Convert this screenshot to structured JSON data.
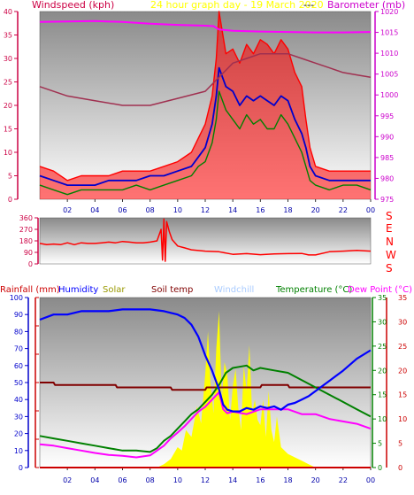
{
  "header": {
    "title": "24 hour graph day - 19 March 2020",
    "dashes": "---",
    "left_label": "Windspeed (kph)",
    "right_label": "Barometer (mb)"
  },
  "direction_letters": [
    "S",
    "E",
    "N",
    "W",
    "S"
  ],
  "colors": {
    "gust": "#ff0000",
    "wind": "#0000cc",
    "wind_alt": "#008000",
    "barometer": "#ff00ff",
    "trend": "#a03050",
    "direction": "#ff0000",
    "axis_left": "#cc0044",
    "axis_right": "#cc00cc",
    "axis_blue": "#0000cc",
    "axis_green": "#008000",
    "rain": "#cc0000",
    "humidity": "#0000ff",
    "solar": "#ffff00",
    "solar_label": "#999900",
    "soil": "#800000",
    "windchill": "#aaccff",
    "temperature": "#008000",
    "dewpoint": "#ff00ff",
    "hour_label": "#0000aa"
  },
  "legend": [
    {
      "key": "rain",
      "text": "Rainfall (mm)"
    },
    {
      "key": "humidity",
      "text": "Humidity"
    },
    {
      "key": "solar",
      "text": "Solar"
    },
    {
      "key": "soil",
      "text": "Soil temp"
    },
    {
      "key": "windchill",
      "text": "Windchill"
    },
    {
      "key": "temperature",
      "text": "Temperature (°C)"
    },
    {
      "key": "dewpoint",
      "text": "Dew Point (°C)"
    }
  ],
  "chart_data": [
    {
      "type": "line",
      "title": "24 hour graph day - 19 March 2020",
      "ylabel": "Windspeed (kph)",
      "y2label": "Barometer (mb)",
      "xlim": [
        0,
        24
      ],
      "ylim": [
        0,
        40
      ],
      "y2lim": [
        975,
        1020
      ],
      "xticks": [
        "02",
        "04",
        "06",
        "08",
        "10",
        "12",
        "14",
        "16",
        "18",
        "20",
        "22",
        "00"
      ],
      "yticks": [
        0,
        5,
        10,
        15,
        20,
        25,
        30,
        35,
        40
      ],
      "y2ticks": [
        975,
        980,
        985,
        990,
        995,
        1000,
        1005,
        1010,
        1015,
        1020
      ],
      "grid": false,
      "series": [
        {
          "key": "gust",
          "x": [
            0,
            1,
            2,
            3,
            4,
            5,
            6,
            7,
            8,
            9,
            10,
            11,
            11.5,
            12,
            12.5,
            12.8,
            13,
            13.5,
            14,
            14.5,
            15,
            15.5,
            16,
            16.5,
            17,
            17.5,
            18,
            18.5,
            19,
            19.3,
            19.6,
            20,
            21,
            22,
            23,
            24
          ],
          "values": [
            7,
            6,
            4,
            5,
            5,
            5,
            6,
            6,
            6,
            7,
            8,
            10,
            13,
            16,
            22,
            30,
            40,
            31,
            32,
            29,
            33,
            31,
            34,
            33,
            31,
            34,
            32,
            27,
            24,
            17,
            11,
            7,
            6,
            6,
            6,
            6
          ]
        },
        {
          "key": "wind",
          "x": [
            0,
            1,
            2,
            3,
            4,
            5,
            6,
            7,
            8,
            9,
            10,
            11,
            11.5,
            12,
            12.5,
            12.8,
            13,
            13.5,
            14,
            14.5,
            15,
            15.5,
            16,
            16.5,
            17,
            17.5,
            18,
            18.5,
            19,
            19.3,
            19.6,
            20,
            21,
            22,
            23,
            24
          ],
          "values": [
            5,
            4,
            3,
            3,
            3,
            4,
            4,
            4,
            5,
            5,
            6,
            7,
            9,
            11,
            16,
            22,
            28,
            24,
            23,
            20,
            22,
            21,
            22,
            21,
            20,
            22,
            21,
            17,
            14,
            11,
            7,
            5,
            4,
            4,
            4,
            4
          ]
        },
        {
          "key": "wind_alt",
          "x": [
            0,
            1,
            2,
            3,
            4,
            5,
            6,
            7,
            8,
            9,
            10,
            11,
            11.5,
            12,
            12.5,
            12.8,
            13,
            13.5,
            14,
            14.5,
            15,
            15.5,
            16,
            16.5,
            17,
            17.5,
            18,
            18.5,
            19,
            19.3,
            19.6,
            20,
            21,
            22,
            23,
            24
          ],
          "values": [
            3,
            2,
            1,
            2,
            2,
            2,
            2,
            3,
            2,
            3,
            4,
            5,
            7,
            8,
            12,
            17,
            23,
            19,
            17,
            15,
            18,
            16,
            17,
            15,
            15,
            18,
            16,
            13,
            10,
            7,
            4,
            3,
            2,
            3,
            3,
            2
          ]
        },
        {
          "key": "barometer",
          "axis": "right",
          "x": [
            0,
            2,
            4,
            6,
            8,
            10,
            12,
            12.6,
            13,
            14,
            16,
            18,
            20,
            22,
            24
          ],
          "values": [
            1017.5,
            1017.6,
            1017.7,
            1017.5,
            1017.1,
            1016.8,
            1016.6,
            1016.5,
            1015.7,
            1015.4,
            1015.2,
            1015.1,
            1015.0,
            1015.0,
            1015.1
          ]
        },
        {
          "key": "trend",
          "x": [
            0,
            2,
            4,
            6,
            8,
            10,
            12,
            13,
            14,
            15,
            16,
            17,
            18,
            19,
            20,
            21,
            22,
            23,
            24
          ],
          "values": [
            24,
            22,
            21,
            20,
            20,
            21.5,
            23,
            26,
            29,
            30,
            31,
            31,
            31,
            30,
            29,
            28,
            27,
            26.5,
            26
          ]
        }
      ]
    },
    {
      "type": "line",
      "ylim": [
        0,
        360
      ],
      "yticks": [
        0,
        90,
        180,
        270,
        360
      ],
      "grid": false,
      "series": [
        {
          "key": "direction",
          "x": [
            0,
            0.5,
            1,
            1.5,
            2,
            2.5,
            3,
            3.5,
            4,
            4.5,
            5,
            5.5,
            6,
            6.5,
            7,
            7.5,
            8,
            8.5,
            8.8,
            8.9,
            9.0,
            9.1,
            9.2,
            9.4,
            9.6,
            10,
            10.5,
            11,
            12,
            13,
            14,
            15,
            16,
            17,
            18,
            19,
            19.5,
            20,
            21,
            22,
            23,
            24
          ],
          "values": [
            160,
            150,
            155,
            150,
            165,
            150,
            165,
            160,
            160,
            165,
            170,
            165,
            175,
            170,
            165,
            165,
            170,
            180,
            270,
            30,
            350,
            20,
            330,
            250,
            190,
            140,
            125,
            110,
            100,
            95,
            75,
            80,
            72,
            78,
            80,
            82,
            70,
            70,
            95,
            100,
            105,
            100
          ]
        }
      ]
    },
    {
      "type": "line",
      "ylabel": "Rainfall (mm) / Humidity",
      "y2label": "Temperature (°C) / Dew Point (°C)",
      "xlim": [
        0,
        24
      ],
      "ylim": [
        0,
        100
      ],
      "y2lim": [
        0,
        35
      ],
      "yticks": [
        0,
        10,
        20,
        30,
        40,
        50,
        60,
        70,
        80,
        90,
        100
      ],
      "rain_ticks": [
        0,
        5,
        10,
        15,
        20,
        25,
        30
      ],
      "y2ticks": [
        0,
        5,
        10,
        15,
        20,
        25,
        30,
        35
      ],
      "grid": false,
      "series": [
        {
          "key": "humidity",
          "axis": "left",
          "x": [
            0,
            1,
            2,
            3,
            4,
            5,
            6,
            7,
            8,
            9,
            9.5,
            10,
            10.5,
            11,
            11.5,
            12,
            12.5,
            13,
            13.3,
            13.6,
            14,
            14.5,
            15,
            15.5,
            16,
            16.5,
            17,
            17.5,
            18,
            18.5,
            19,
            19.5,
            20,
            21,
            22,
            23,
            24
          ],
          "values": [
            87,
            90,
            90,
            92,
            92,
            92,
            93,
            93,
            93,
            92,
            91,
            90,
            88,
            84,
            77,
            66,
            57,
            46,
            37,
            34,
            33,
            33,
            35,
            34,
            36,
            35,
            36,
            34,
            37,
            38,
            40,
            42,
            45,
            51,
            57,
            64,
            69
          ]
        },
        {
          "key": "temperature",
          "axis": "right",
          "x": [
            0,
            1,
            2,
            3,
            4,
            5,
            6,
            7,
            8,
            8.5,
            9,
            9.5,
            10,
            10.5,
            11,
            11.5,
            12,
            12.5,
            13,
            13.5,
            14,
            15,
            15.5,
            16,
            17,
            18,
            19,
            20,
            21,
            22,
            23,
            24
          ],
          "values": [
            6.5,
            6,
            5.5,
            5,
            4.5,
            4,
            3.5,
            3.5,
            3.2,
            4,
            5.5,
            6.5,
            8,
            9.5,
            11,
            12,
            13.5,
            15,
            17,
            19.5,
            20.5,
            21,
            20,
            20.5,
            20,
            19.5,
            18,
            16.5,
            15,
            13.5,
            12,
            10.5
          ]
        },
        {
          "key": "dewpoint",
          "axis": "right",
          "x": [
            0,
            1,
            2,
            3,
            4,
            5,
            6,
            7,
            8,
            8.5,
            9,
            9.5,
            10,
            10.5,
            11,
            11.5,
            12,
            12.5,
            13,
            13.3,
            13.6,
            14,
            15,
            16,
            17,
            18,
            19,
            20,
            21,
            22,
            23,
            24
          ],
          "values": [
            4.8,
            4.5,
            4,
            3.5,
            3,
            2.6,
            2.4,
            2.1,
            2.5,
            3.5,
            4.5,
            6,
            7.2,
            8.5,
            10,
            11.5,
            12.5,
            14,
            15.5,
            12,
            11.2,
            11.5,
            11,
            12,
            12,
            12,
            11,
            11,
            10,
            9.5,
            9,
            8
          ]
        },
        {
          "key": "soil",
          "axis": "right",
          "x": [
            0,
            1,
            1.1,
            5.5,
            5.6,
            9.5,
            9.6,
            12,
            12.1,
            16,
            16.1,
            18,
            18.1,
            24
          ],
          "values": [
            17.5,
            17.5,
            17,
            17,
            16.5,
            16.5,
            16,
            16,
            16.5,
            16.5,
            17,
            17,
            16.5,
            16.5
          ]
        },
        {
          "key": "rain",
          "axis": "rain",
          "x": [
            0,
            24
          ],
          "values": [
            0,
            0
          ]
        },
        {
          "key": "solar",
          "axis": "left",
          "type": "area",
          "x": [
            8.5,
            9,
            9.5,
            10,
            10.3,
            10.6,
            11,
            11.4,
            11.7,
            12,
            12.2,
            12.4,
            12.6,
            12.8,
            13,
            13.2,
            13.4,
            13.6,
            13.8,
            14,
            14.2,
            14.4,
            14.6,
            14.8,
            15,
            15.2,
            15.4,
            15.6,
            15.8,
            16,
            16.2,
            16.4,
            16.6,
            16.8,
            17,
            17.2,
            17.5,
            18,
            18.5,
            19,
            19.5,
            20
          ],
          "values": [
            0,
            2,
            5,
            12,
            10,
            22,
            18,
            36,
            26,
            55,
            80,
            48,
            32,
            70,
            92,
            40,
            62,
            55,
            28,
            48,
            58,
            35,
            22,
            60,
            45,
            72,
            32,
            40,
            28,
            25,
            40,
            18,
            45,
            22,
            15,
            30,
            12,
            8,
            6,
            4,
            2,
            0
          ]
        }
      ]
    }
  ]
}
